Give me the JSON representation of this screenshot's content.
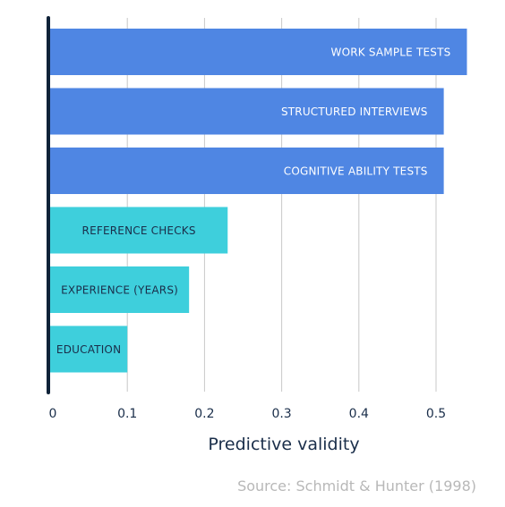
{
  "chart_data": {
    "type": "bar",
    "orientation": "horizontal",
    "categories": [
      "WORK SAMPLE TESTS",
      "STRUCTURED INTERVIEWS",
      "COGNITIVE ABILITY TESTS",
      "REFERENCE CHECKS",
      "EXPERIENCE (YEARS)",
      "EDUCATION"
    ],
    "values": [
      0.54,
      0.51,
      0.51,
      0.23,
      0.18,
      0.1
    ],
    "bar_colors": [
      "#4f86e3",
      "#4f86e3",
      "#4f86e3",
      "#3ecfdc",
      "#3ecfdc",
      "#3ecfdc"
    ],
    "label_colors": [
      "#ffffff",
      "#ffffff",
      "#ffffff",
      "#1a2e4a",
      "#1a2e4a",
      "#1a2e4a"
    ],
    "xlabel": "Predictive validity",
    "ylabel": "",
    "xlim": [
      0,
      0.55
    ],
    "xticks": [
      0,
      0.1,
      0.2,
      0.3,
      0.4,
      0.5
    ],
    "xtick_labels": [
      "0",
      "0.1",
      "0.2",
      "0.3",
      "0.4",
      "0.5"
    ],
    "grid": true,
    "source": "Source: Schmidt & Hunter (1998)"
  }
}
